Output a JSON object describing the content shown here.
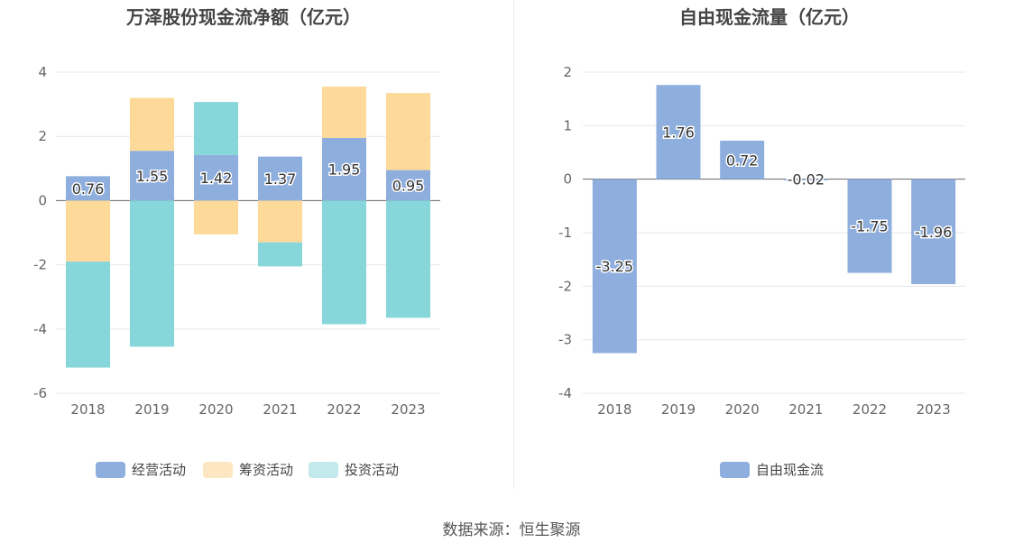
{
  "chart_data": [
    {
      "type": "bar",
      "stacked": true,
      "title": "万泽股份现金流净额（亿元）",
      "categories": [
        "2018",
        "2019",
        "2020",
        "2021",
        "2022",
        "2023"
      ],
      "ylim": [
        -6,
        4
      ],
      "yticks": [
        4,
        2,
        0,
        -2,
        -4,
        -6
      ],
      "grid": true,
      "legend_position": "bottom",
      "series": [
        {
          "name": "经营活动",
          "color": "#8eaedd",
          "legend_color": "#8eaedd",
          "labeled": true,
          "values": [
            0.76,
            1.55,
            1.42,
            1.37,
            1.95,
            0.95
          ]
        },
        {
          "name": "筹资活动",
          "color": "#fdd99a",
          "legend_color": "#fde6c2",
          "labeled": false,
          "values": [
            -1.9,
            1.65,
            -1.05,
            -1.3,
            1.6,
            2.4
          ]
        },
        {
          "name": "投资活动",
          "color": "#87d6da",
          "legend_color": "#c2eaec",
          "labeled": false,
          "values": [
            -3.3,
            -4.55,
            1.65,
            -0.75,
            -3.85,
            -3.65
          ]
        }
      ]
    },
    {
      "type": "bar",
      "title": "自由现金流量（亿元）",
      "categories": [
        "2018",
        "2019",
        "2020",
        "2021",
        "2022",
        "2023"
      ],
      "ylim": [
        -4,
        2
      ],
      "yticks": [
        2,
        1,
        0,
        -1,
        -2,
        -3,
        -4
      ],
      "grid": true,
      "legend_position": "bottom",
      "series": [
        {
          "name": "自由现金流",
          "color": "#8eaedd",
          "legend_color": "#8eaedd",
          "labeled": true,
          "values": [
            -3.25,
            1.76,
            0.72,
            -0.02,
            -1.75,
            -1.96
          ]
        }
      ]
    }
  ],
  "footer": {
    "source": "数据来源：恒生聚源"
  }
}
